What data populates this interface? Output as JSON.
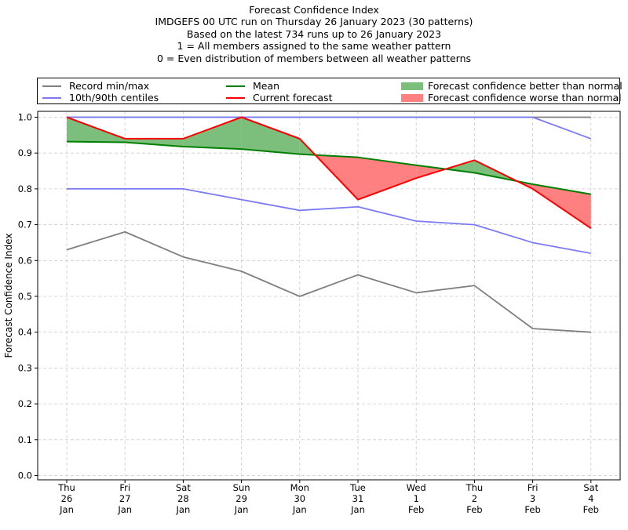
{
  "title_lines": [
    "Forecast Confidence Index",
    "IMDGEFS 00 UTC run on Thursday 26 January 2023 (30 patterns)",
    "Based on the latest 734 runs up to 26 January 2023",
    "1 = All members assigned to the same weather pattern",
    "0 = Even distribution of members between all weather patterns"
  ],
  "legend": {
    "record": "Record min/max",
    "centiles": "10th/90th centiles",
    "mean": "Mean",
    "current": "Current forecast",
    "better": "Forecast confidence better than normal",
    "worse": "Forecast confidence worse than normal"
  },
  "colors": {
    "record": "#7f7f7f",
    "centiles": "#7b7bf5",
    "centile_high": "#3535e0",
    "mean": "#008000",
    "current": "#ff0000",
    "better": "#7cbf7c",
    "worse": "#ff8080",
    "grid": "#cccccc"
  },
  "chart_data": {
    "type": "line",
    "title": "Forecast Confidence Index",
    "ylabel": "Forecast Confidence Index",
    "xlabel": "",
    "ylim": [
      0,
      1
    ],
    "yticks": [
      "0.0",
      "0.1",
      "0.2",
      "0.3",
      "0.4",
      "0.5",
      "0.6",
      "0.7",
      "0.8",
      "0.9",
      "1.0"
    ],
    "grid": true,
    "legend_position": "top",
    "categories": [
      [
        "Thu",
        "26",
        "Jan"
      ],
      [
        "Fri",
        "27",
        "Jan"
      ],
      [
        "Sat",
        "28",
        "Jan"
      ],
      [
        "Sun",
        "29",
        "Jan"
      ],
      [
        "Mon",
        "30",
        "Jan"
      ],
      [
        "Tue",
        "31",
        "Jan"
      ],
      [
        "Wed",
        "1",
        "Feb"
      ],
      [
        "Thu",
        "2",
        "Feb"
      ],
      [
        "Fri",
        "3",
        "Feb"
      ],
      [
        "Sat",
        "4",
        "Feb"
      ]
    ],
    "series": [
      {
        "name": "Record min/max",
        "role": "record_max",
        "values": [
          1.0,
          1.0,
          1.0,
          1.0,
          1.0,
          1.0,
          1.0,
          1.0,
          1.0,
          1.0
        ]
      },
      {
        "name": "Record min/max",
        "role": "record_min",
        "values": [
          0.63,
          0.68,
          0.61,
          0.57,
          0.5,
          0.56,
          0.51,
          0.53,
          0.41,
          0.4
        ]
      },
      {
        "name": "10th/90th centiles",
        "role": "centile_90",
        "values": [
          1.0,
          1.0,
          1.0,
          1.0,
          1.0,
          1.0,
          1.0,
          1.0,
          1.0,
          0.94
        ]
      },
      {
        "name": "10th/90th centiles",
        "role": "centile_10",
        "values": [
          0.8,
          0.8,
          0.8,
          0.77,
          0.74,
          0.75,
          0.71,
          0.7,
          0.65,
          0.62
        ]
      },
      {
        "name": "Mean",
        "role": "mean",
        "values": [
          0.932,
          0.93,
          0.918,
          0.911,
          0.897,
          0.888,
          0.866,
          0.845,
          0.813,
          0.785
        ]
      },
      {
        "name": "Current forecast",
        "role": "current",
        "values": [
          1.0,
          0.94,
          0.94,
          1.0,
          0.94,
          0.77,
          0.83,
          0.88,
          0.8,
          0.69
        ]
      }
    ]
  }
}
